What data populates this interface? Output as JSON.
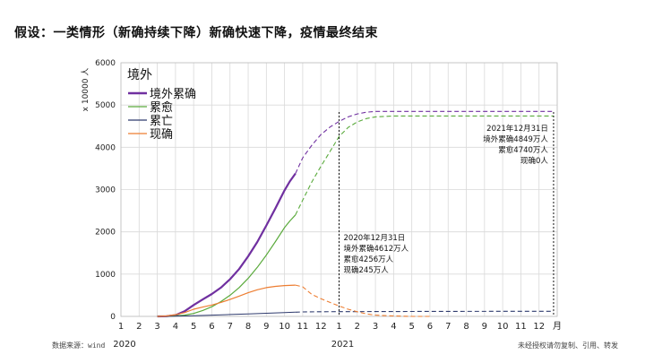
{
  "headline": "假设：一类情形（新确持续下降）新确快速下降，疫情最终结束",
  "footer": {
    "source": "数据来源：wind",
    "disclaimer": "未经授权请勿复制、引用、转发"
  },
  "colors": {
    "cumulative": "#7030a0",
    "recovered": "#5aaa3c",
    "deaths": "#2f3b6e",
    "current": "#ed7d31",
    "grid": "#d9d9d9"
  },
  "chart_data": {
    "type": "line",
    "title": "境外",
    "ylabel": "x 10000 人",
    "ylim": [
      0,
      6000
    ],
    "yticks": [
      0,
      1000,
      2000,
      3000,
      4000,
      5000,
      6000
    ],
    "xlim": [
      0,
      24
    ],
    "xtick_values": [
      0,
      1,
      2,
      3,
      4,
      5,
      6,
      7,
      8,
      9,
      10,
      11,
      12,
      13,
      14,
      15,
      16,
      17,
      18,
      19,
      20,
      21,
      22,
      23,
      24
    ],
    "xtick_labels": [
      "1",
      "2",
      "3",
      "4",
      "5",
      "6",
      "7",
      "8",
      "9",
      "10",
      "11",
      "12",
      "1",
      "2",
      "3",
      "4",
      "5",
      "6",
      "7",
      "8",
      "9",
      "10",
      "11",
      "12",
      "月"
    ],
    "year_labels": [
      {
        "label": "2020",
        "x": 0
      },
      {
        "label": "2021",
        "x": 12
      }
    ],
    "legend": [
      "境外累确",
      "累愈",
      "累亡",
      "现确"
    ],
    "projection_start": 9.6,
    "series": [
      {
        "name": "境外累确",
        "color": "#7030a0",
        "width": 2.2,
        "actual": [
          [
            2,
            0
          ],
          [
            2.5,
            5
          ],
          [
            3,
            30
          ],
          [
            3.5,
            120
          ],
          [
            4,
            270
          ],
          [
            4.5,
            400
          ],
          [
            5,
            530
          ],
          [
            5.5,
            680
          ],
          [
            6,
            880
          ],
          [
            6.5,
            1120
          ],
          [
            7,
            1420
          ],
          [
            7.5,
            1760
          ],
          [
            8,
            2150
          ],
          [
            8.5,
            2560
          ],
          [
            9,
            2980
          ],
          [
            9.3,
            3200
          ],
          [
            9.6,
            3380
          ]
        ],
        "projection": [
          [
            9.6,
            3380
          ],
          [
            10,
            3750
          ],
          [
            10.5,
            4050
          ],
          [
            11,
            4300
          ],
          [
            11.5,
            4480
          ],
          [
            12,
            4612
          ],
          [
            12.5,
            4720
          ],
          [
            13,
            4790
          ],
          [
            13.5,
            4830
          ],
          [
            14,
            4849
          ],
          [
            16,
            4849
          ],
          [
            18,
            4849
          ],
          [
            20,
            4849
          ],
          [
            22,
            4849
          ],
          [
            23.8,
            4849
          ]
        ]
      },
      {
        "name": "累愈",
        "color": "#5aaa3c",
        "width": 1.2,
        "actual": [
          [
            2,
            0
          ],
          [
            3,
            10
          ],
          [
            3.5,
            30
          ],
          [
            4,
            70
          ],
          [
            4.5,
            140
          ],
          [
            5,
            230
          ],
          [
            5.5,
            350
          ],
          [
            6,
            500
          ],
          [
            6.5,
            680
          ],
          [
            7,
            900
          ],
          [
            7.5,
            1160
          ],
          [
            8,
            1450
          ],
          [
            8.5,
            1770
          ],
          [
            9,
            2100
          ],
          [
            9.3,
            2260
          ],
          [
            9.6,
            2400
          ]
        ],
        "projection": [
          [
            9.6,
            2400
          ],
          [
            10,
            2750
          ],
          [
            10.5,
            3180
          ],
          [
            11,
            3550
          ],
          [
            11.5,
            3900
          ],
          [
            12,
            4256
          ],
          [
            12.5,
            4470
          ],
          [
            13,
            4600
          ],
          [
            13.5,
            4680
          ],
          [
            14,
            4720
          ],
          [
            15,
            4740
          ],
          [
            18,
            4740
          ],
          [
            21,
            4740
          ],
          [
            23.8,
            4740
          ]
        ]
      },
      {
        "name": "累亡",
        "color": "#2f3b6e",
        "width": 1.0,
        "actual": [
          [
            2,
            0
          ],
          [
            3,
            5
          ],
          [
            4,
            15
          ],
          [
            5,
            30
          ],
          [
            6,
            45
          ],
          [
            7,
            60
          ],
          [
            8,
            75
          ],
          [
            9,
            90
          ],
          [
            9.6,
            100
          ]
        ],
        "projection": [
          [
            9.6,
            100
          ],
          [
            10,
            105
          ],
          [
            11,
            110
          ],
          [
            12,
            112
          ],
          [
            14,
            115
          ],
          [
            18,
            118
          ],
          [
            23.8,
            120
          ]
        ]
      },
      {
        "name": "现确",
        "color": "#ed7d31",
        "width": 1.2,
        "actual": [
          [
            2,
            0
          ],
          [
            2.5,
            10
          ],
          [
            3,
            40
          ],
          [
            3.5,
            90
          ],
          [
            4,
            170
          ],
          [
            4.5,
            220
          ],
          [
            5,
            270
          ],
          [
            5.5,
            330
          ],
          [
            6,
            400
          ],
          [
            6.5,
            480
          ],
          [
            7,
            560
          ],
          [
            7.5,
            630
          ],
          [
            8,
            680
          ],
          [
            8.5,
            710
          ],
          [
            9,
            730
          ],
          [
            9.6,
            740
          ]
        ],
        "projection": [
          [
            9.6,
            740
          ],
          [
            10,
            700
          ],
          [
            10.5,
            520
          ],
          [
            11,
            420
          ],
          [
            11.5,
            330
          ],
          [
            12,
            245
          ],
          [
            12.5,
            170
          ],
          [
            13,
            110
          ],
          [
            13.5,
            60
          ],
          [
            14,
            30
          ],
          [
            15,
            10
          ],
          [
            16,
            0
          ],
          [
            17,
            0
          ]
        ]
      }
    ],
    "vlines": [
      12,
      23.8
    ],
    "annotations": [
      {
        "at_x": 12,
        "lines": [
          "2020年12月31日",
          "境外累确4612万人",
          "累愈4256万人",
          "现确245万人"
        ]
      },
      {
        "at_x": 23.8,
        "lines": [
          "2021年12月31日",
          "境外累确4849万人",
          "累愈4740万人",
          "现确0人"
        ]
      }
    ]
  }
}
